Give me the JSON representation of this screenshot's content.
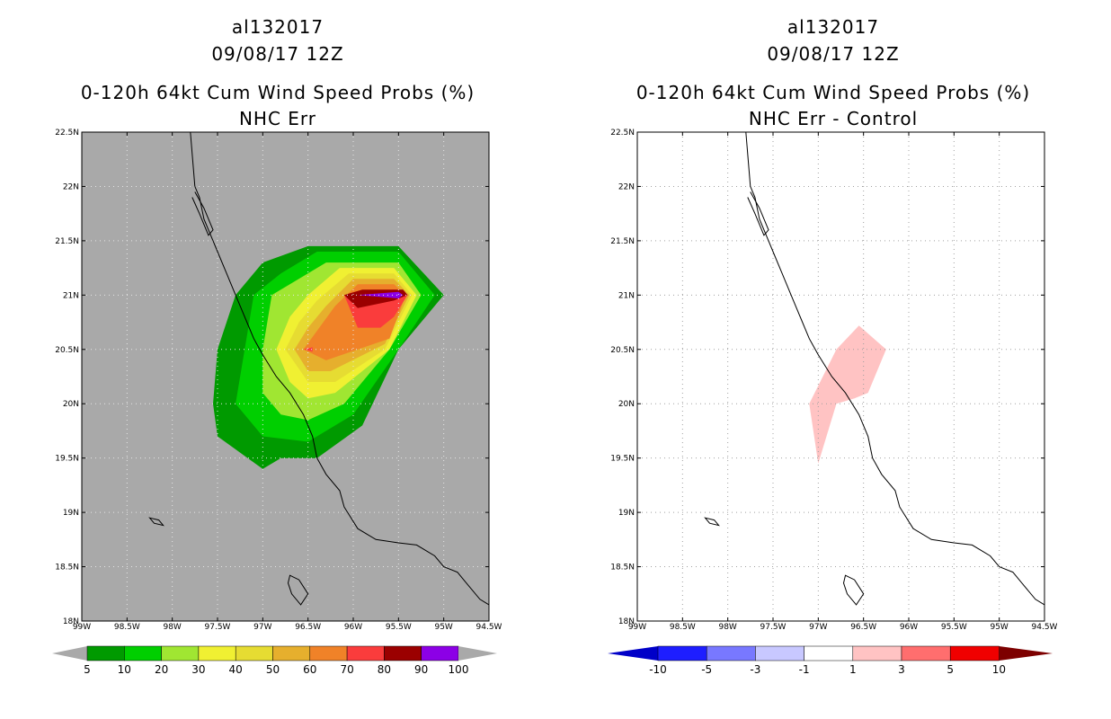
{
  "panels": [
    {
      "storm_id": "al132017",
      "datetime": "09/08/17 12Z",
      "product": "0-120h 64kt Cum Wind Speed Probs (%)",
      "subtitle": "NHC Err",
      "background": "#a9a9a9",
      "grid_color": "#e6e6e6",
      "colorbar": {
        "labels": [
          "5",
          "10",
          "20",
          "30",
          "40",
          "50",
          "60",
          "70",
          "80",
          "90",
          "100"
        ],
        "colors": [
          "#009a00",
          "#00cf00",
          "#a0e632",
          "#f0f032",
          "#e6dc32",
          "#e6af2d",
          "#f08228",
          "#fa3c3c",
          "#9b0000",
          "#8c00e6"
        ],
        "end_color": "#a9a9a9"
      }
    },
    {
      "storm_id": "al132017",
      "datetime": "09/08/17 12Z",
      "product": "0-120h 64kt Cum Wind Speed Probs (%)",
      "subtitle": "NHC Err - Control",
      "background": "#ffffff",
      "grid_color": "#a0a0a0",
      "colorbar": {
        "labels": [
          "-10",
          "-5",
          "-3",
          "-1",
          "1",
          "3",
          "5",
          "10"
        ],
        "colors": [
          "#0000c8",
          "#1e1eff",
          "#7878ff",
          "#c8c8ff",
          "#ffffff",
          "#ffc3c3",
          "#ff6e6e",
          "#f00000",
          "#7d0000"
        ],
        "left_tip_color": "#0000c8",
        "right_tip_color": "#7d0000"
      }
    }
  ],
  "lon_ticks": [
    "99W",
    "98.5W",
    "98W",
    "97.5W",
    "97W",
    "96.5W",
    "96W",
    "95.5W",
    "95W",
    "94.5W"
  ],
  "lat_ticks": [
    "22.5N",
    "22N",
    "21.5N",
    "21N",
    "20.5N",
    "20N",
    "19.5N",
    "19N",
    "18.5N",
    "18N"
  ],
  "map_extent": {
    "lon_min": -99,
    "lon_max": -94.5,
    "lat_min": 18,
    "lat_max": 22.5
  },
  "coastline": [
    [
      -97.8,
      22.5
    ],
    [
      -97.78,
      22.3
    ],
    [
      -97.75,
      22.0
    ],
    [
      -97.7,
      21.9
    ],
    [
      -97.65,
      21.7
    ],
    [
      -97.55,
      21.5
    ],
    [
      -97.5,
      21.4
    ],
    [
      -97.4,
      21.2
    ],
    [
      -97.3,
      21.0
    ],
    [
      -97.2,
      20.8
    ],
    [
      -97.1,
      20.6
    ],
    [
      -97.0,
      20.45
    ],
    [
      -96.85,
      20.25
    ],
    [
      -96.7,
      20.1
    ],
    [
      -96.55,
      19.9
    ],
    [
      -96.45,
      19.7
    ],
    [
      -96.4,
      19.5
    ],
    [
      -96.3,
      19.35
    ],
    [
      -96.15,
      19.2
    ],
    [
      -96.1,
      19.05
    ],
    [
      -95.95,
      18.85
    ],
    [
      -95.75,
      18.75
    ],
    [
      -95.5,
      18.72
    ],
    [
      -95.3,
      18.7
    ],
    [
      -95.1,
      18.6
    ],
    [
      -95.0,
      18.5
    ],
    [
      -94.85,
      18.45
    ],
    [
      -94.75,
      18.35
    ],
    [
      -94.6,
      18.2
    ],
    [
      -94.5,
      18.15
    ]
  ],
  "inner_lagoon": [
    [
      -97.75,
      21.95
    ],
    [
      -97.65,
      21.8
    ],
    [
      -97.55,
      21.6
    ],
    [
      -97.6,
      21.55
    ],
    [
      -97.7,
      21.75
    ],
    [
      -97.78,
      21.9
    ]
  ],
  "lake_left": [
    [
      -98.25,
      18.95
    ],
    [
      -98.15,
      18.93
    ],
    [
      -98.1,
      18.88
    ],
    [
      -98.2,
      18.9
    ]
  ],
  "lake_bottom": [
    [
      -96.7,
      18.42
    ],
    [
      -96.6,
      18.38
    ],
    [
      -96.5,
      18.25
    ],
    [
      -96.58,
      18.15
    ],
    [
      -96.68,
      18.25
    ],
    [
      -96.72,
      18.35
    ]
  ],
  "prob_contours": [
    {
      "color": "#009a00",
      "polygon": [
        [
          -97,
          21.3
        ],
        [
          -96.5,
          21.45
        ],
        [
          -95.5,
          21.45
        ],
        [
          -95,
          21
        ],
        [
          -95.5,
          20.5
        ],
        [
          -95.9,
          19.8
        ],
        [
          -96.4,
          19.5
        ],
        [
          -96.8,
          19.5
        ],
        [
          -97,
          19.4
        ],
        [
          -97.5,
          19.7
        ],
        [
          -97.55,
          20
        ],
        [
          -97.5,
          20.5
        ],
        [
          -97.3,
          21
        ]
      ]
    },
    {
      "color": "#00cf00",
      "polygon": [
        [
          -96.8,
          21.2
        ],
        [
          -96.4,
          21.4
        ],
        [
          -95.5,
          21.4
        ],
        [
          -95.1,
          21
        ],
        [
          -95.5,
          20.5
        ],
        [
          -96,
          19.9
        ],
        [
          -96.5,
          19.65
        ],
        [
          -97,
          19.7
        ],
        [
          -97.3,
          20
        ],
        [
          -97.2,
          20.5
        ],
        [
          -97.1,
          21
        ]
      ]
    },
    {
      "color": "#a0e632",
      "polygon": [
        [
          -96.7,
          21.1
        ],
        [
          -96.3,
          21.3
        ],
        [
          -95.5,
          21.3
        ],
        [
          -95.25,
          21
        ],
        [
          -95.6,
          20.5
        ],
        [
          -96.1,
          20
        ],
        [
          -96.5,
          19.85
        ],
        [
          -96.8,
          19.9
        ],
        [
          -97,
          20.1
        ],
        [
          -97,
          20.5
        ],
        [
          -96.9,
          21
        ]
      ]
    },
    {
      "color": "#f0f032",
      "polygon": [
        [
          -96.5,
          21
        ],
        [
          -96.15,
          21.25
        ],
        [
          -95.55,
          21.25
        ],
        [
          -95.3,
          21
        ],
        [
          -95.6,
          20.5
        ],
        [
          -96.2,
          20.1
        ],
        [
          -96.5,
          20.05
        ],
        [
          -96.7,
          20.2
        ],
        [
          -96.85,
          20.5
        ],
        [
          -96.7,
          20.8
        ]
      ]
    },
    {
      "color": "#e6dc32",
      "polygon": [
        [
          -96.4,
          20.95
        ],
        [
          -96.05,
          21.2
        ],
        [
          -95.55,
          21.2
        ],
        [
          -95.35,
          21
        ],
        [
          -95.65,
          20.5
        ],
        [
          -96.2,
          20.2
        ],
        [
          -96.5,
          20.2
        ],
        [
          -96.75,
          20.5
        ],
        [
          -96.6,
          20.75
        ]
      ]
    },
    {
      "color": "#e6af2d",
      "polygon": [
        [
          -96.3,
          20.9
        ],
        [
          -96,
          21.15
        ],
        [
          -95.55,
          21.15
        ],
        [
          -95.38,
          21
        ],
        [
          -95.65,
          20.55
        ],
        [
          -96.25,
          20.3
        ],
        [
          -96.5,
          20.3
        ],
        [
          -96.65,
          20.5
        ],
        [
          -96.5,
          20.7
        ]
      ]
    },
    {
      "color": "#f08228",
      "polygon": [
        [
          -96.2,
          20.9
        ],
        [
          -95.95,
          21.1
        ],
        [
          -95.55,
          21.1
        ],
        [
          -95.42,
          21
        ],
        [
          -95.6,
          20.6
        ],
        [
          -96.3,
          20.4
        ],
        [
          -96.55,
          20.5
        ]
      ]
    },
    {
      "color": "#fa3c3c",
      "polygon": [
        [
          -96.1,
          21
        ],
        [
          -95.55,
          21.05
        ],
        [
          -95.4,
          21
        ],
        [
          -95.55,
          20.8
        ],
        [
          -95.7,
          20.7
        ],
        [
          -95.95,
          20.7
        ]
      ]
    },
    {
      "color": "#fa3c3c",
      "polygon": [
        [
          -96.55,
          20.5
        ],
        [
          -96.45,
          20.52
        ],
        [
          -96.45,
          20.48
        ]
      ]
    },
    {
      "color": "#9b0000",
      "polygon": [
        [
          -96.1,
          21
        ],
        [
          -95.9,
          21.05
        ],
        [
          -95.45,
          21.05
        ],
        [
          -95.4,
          21
        ],
        [
          -95.55,
          20.95
        ],
        [
          -95.95,
          20.88
        ]
      ]
    },
    {
      "color": "#8c00e6",
      "polygon": [
        [
          -95.95,
          21.0
        ],
        [
          -95.5,
          21.03
        ],
        [
          -95.45,
          21.0
        ],
        [
          -95.5,
          20.97
        ]
      ]
    }
  ],
  "diff_contours": [
    {
      "color": "#ffc3c3",
      "polygon": [
        [
          -97.1,
          20
        ],
        [
          -96.8,
          20.5
        ],
        [
          -96.55,
          20.72
        ],
        [
          -96.25,
          20.5
        ],
        [
          -96.45,
          20.1
        ],
        [
          -96.6,
          20.05
        ],
        [
          -96.8,
          20
        ],
        [
          -97,
          19.45
        ]
      ]
    }
  ]
}
